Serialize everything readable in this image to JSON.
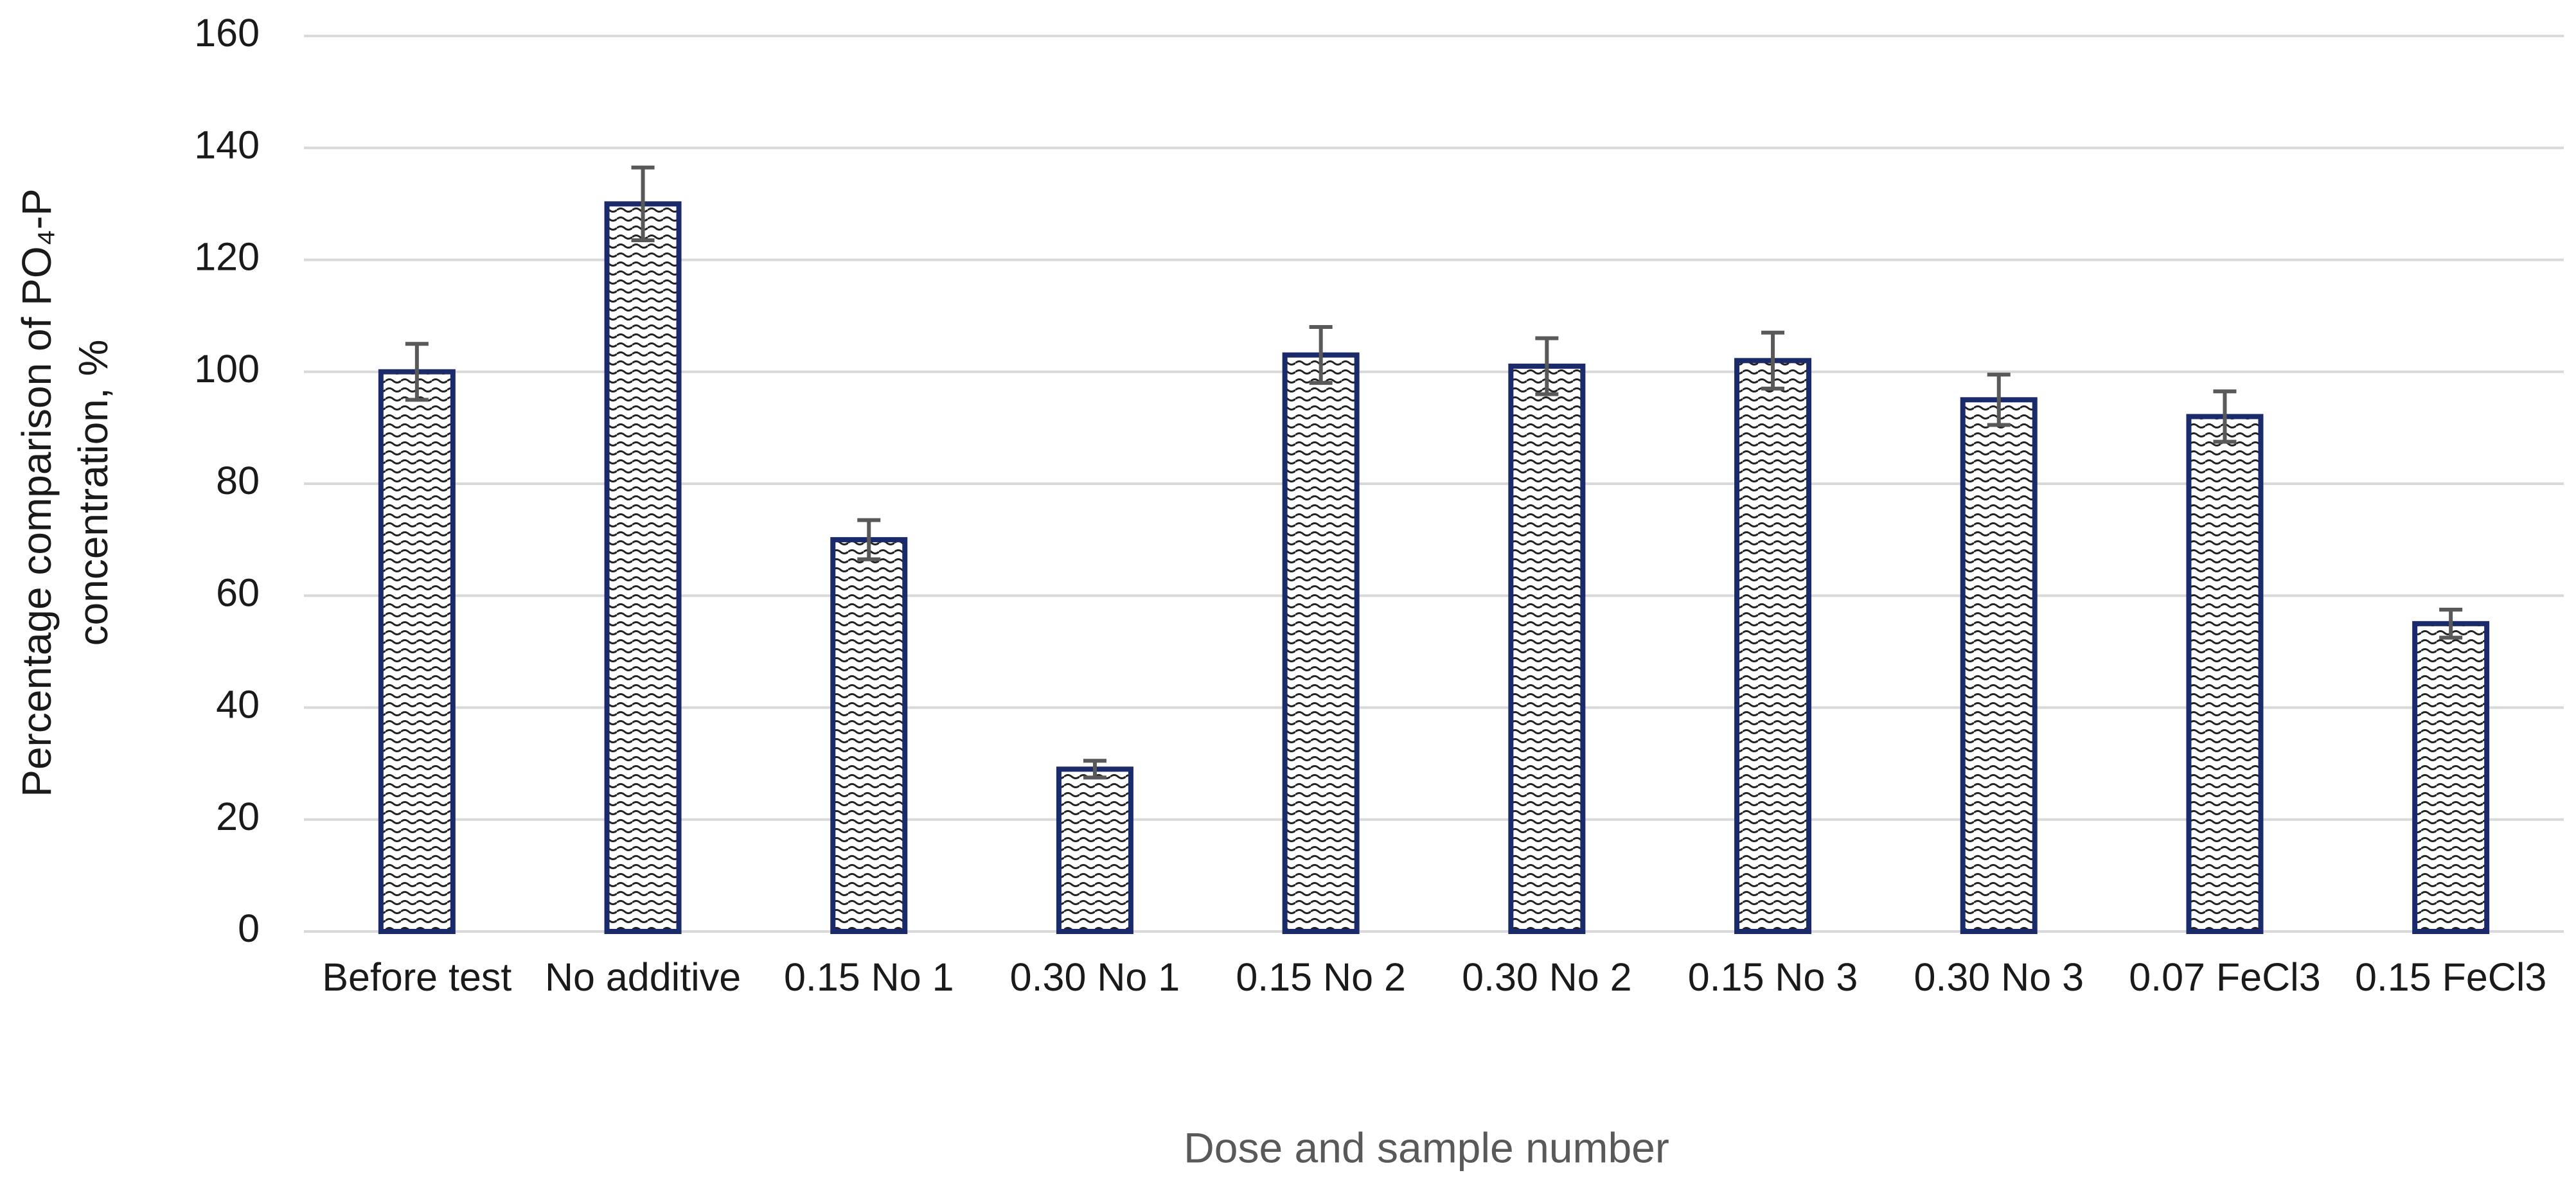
{
  "chart_data": {
    "type": "bar",
    "y_label": [
      "Percentage comparison of PO₄-P",
      "concentration, %"
    ],
    "x_label": "Dose and sample number",
    "categories": [
      "Before test",
      "No additive",
      "0.15 No 1",
      "0.30 No 1",
      "0.15 No 2",
      "0.30 No 2",
      "0.15 No 3",
      "0.30 No 3",
      "0.07 FeCl3",
      "0.15 FeCl3"
    ],
    "values": [
      100,
      130,
      70,
      29,
      103,
      101,
      102,
      95,
      92,
      55
    ],
    "errors": [
      5,
      6.5,
      3.5,
      1.5,
      5,
      5,
      5,
      4.5,
      4.5,
      2.5
    ],
    "color": "#1b2a6b",
    "error_color": "#595959",
    "ylim": [
      0,
      160
    ],
    "yticks": [
      0,
      20,
      40,
      60,
      80,
      100,
      120,
      140,
      160
    ],
    "grid": true
  }
}
